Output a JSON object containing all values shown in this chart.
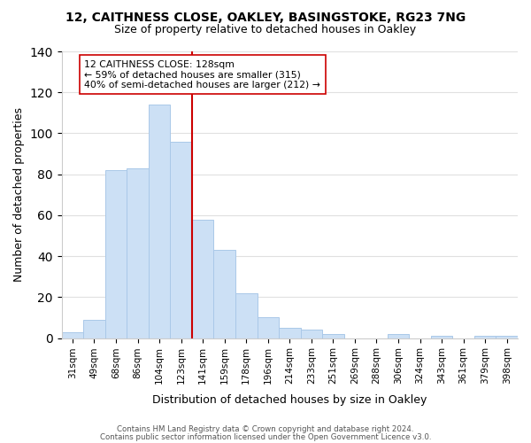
{
  "title_line1": "12, CAITHNESS CLOSE, OAKLEY, BASINGSTOKE, RG23 7NG",
  "title_line2": "Size of property relative to detached houses in Oakley",
  "xlabel": "Distribution of detached houses by size in Oakley",
  "ylabel": "Number of detached properties",
  "bar_labels": [
    "31sqm",
    "49sqm",
    "68sqm",
    "86sqm",
    "104sqm",
    "123sqm",
    "141sqm",
    "159sqm",
    "178sqm",
    "196sqm",
    "214sqm",
    "233sqm",
    "251sqm",
    "269sqm",
    "288sqm",
    "306sqm",
    "324sqm",
    "343sqm",
    "361sqm",
    "379sqm",
    "398sqm"
  ],
  "bar_heights": [
    3,
    9,
    82,
    83,
    114,
    96,
    58,
    43,
    22,
    10,
    5,
    4,
    2,
    0,
    0,
    2,
    0,
    1,
    0,
    1,
    1
  ],
  "bar_color": "#cce0f5",
  "bar_edge_color": "#aac8e8",
  "vline_x_index": 5,
  "vline_color": "#cc0000",
  "annotation_text": "12 CAITHNESS CLOSE: 128sqm\n← 59% of detached houses are smaller (315)\n40% of semi-detached houses are larger (212) →",
  "annotation_box_color": "#ffffff",
  "annotation_box_edge": "#cc0000",
  "ylim": [
    0,
    140
  ],
  "yticks": [
    0,
    20,
    40,
    60,
    80,
    100,
    120,
    140
  ],
  "footer_line1": "Contains HM Land Registry data © Crown copyright and database right 2024.",
  "footer_line2": "Contains public sector information licensed under the Open Government Licence v3.0.",
  "background_color": "#ffffff",
  "grid_color": "#e0e0e0"
}
